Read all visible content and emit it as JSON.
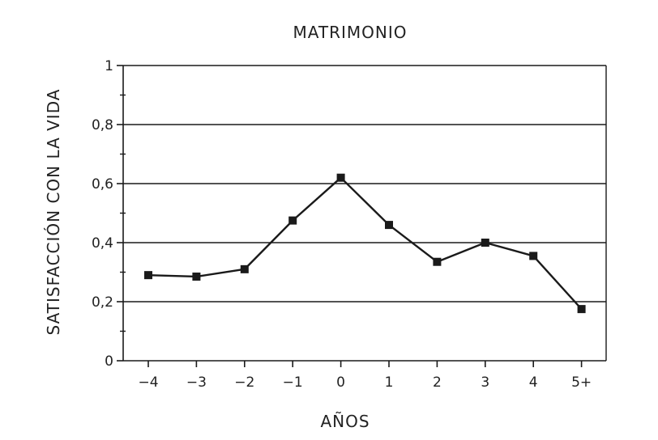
{
  "chart_data": {
    "type": "line",
    "title": "MATRIMONIO",
    "xlabel": "AÑOS",
    "ylabel": "SATISFACCIÓN CON LA VIDA",
    "categories": [
      "−4",
      "−3",
      "−2",
      "−1",
      "0",
      "1",
      "2",
      "3",
      "4",
      "5+"
    ],
    "series": [
      {
        "values": [
          0.29,
          0.285,
          0.31,
          0.475,
          0.62,
          0.46,
          0.335,
          0.4,
          0.355,
          0.175
        ]
      }
    ],
    "ylim": [
      0,
      1
    ],
    "yticks": [
      0,
      0.2,
      0.4,
      0.6,
      0.8,
      1
    ],
    "ytick_labels": [
      "0",
      "0,2",
      "0,4",
      "0,6",
      "0,8",
      "1"
    ],
    "grid": "horizontal",
    "marker": "square",
    "line_color": "#1a1a1a",
    "grid_color": "#1a1a1a"
  }
}
